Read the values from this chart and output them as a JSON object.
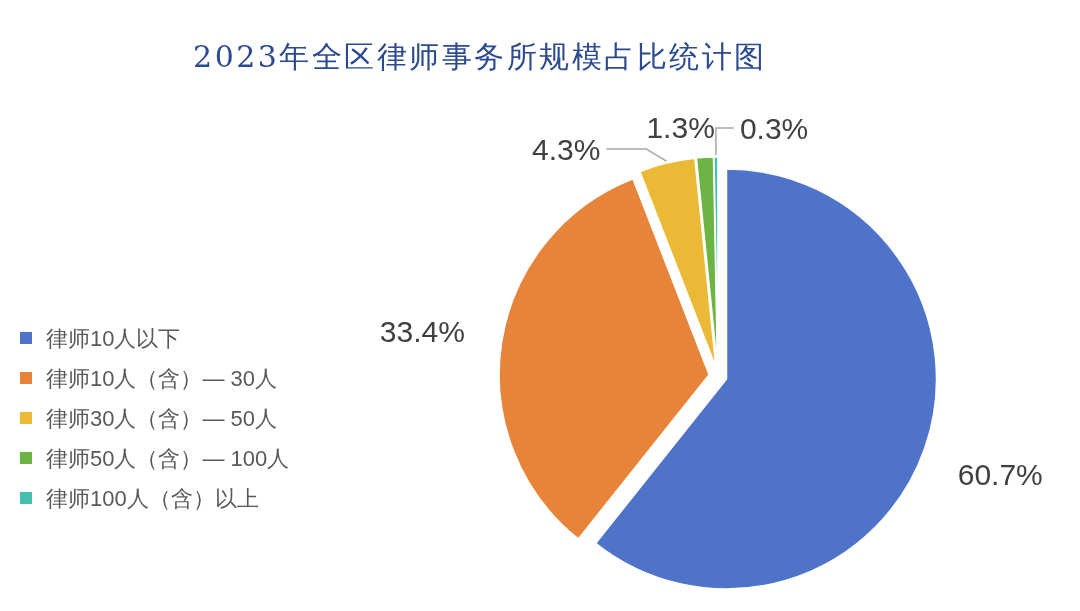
{
  "chart_data": {
    "type": "pie",
    "title": "2023年全区律师事务所规模占比统计图",
    "categories": [
      "律师10人以下",
      "律师10人（含）— 30人",
      "律师30人（含）— 50人",
      "律师50人（含）— 100人",
      "律师100人（含）以上"
    ],
    "values": [
      60.7,
      33.4,
      4.3,
      1.3,
      0.3
    ],
    "value_labels": [
      "60.7%",
      "33.4%",
      "4.3%",
      "1.3%",
      "0.3%"
    ],
    "colors": [
      "#4e73c9",
      "#e8843a",
      "#eab936",
      "#6cb544",
      "#44bfae"
    ],
    "legend": "left"
  }
}
